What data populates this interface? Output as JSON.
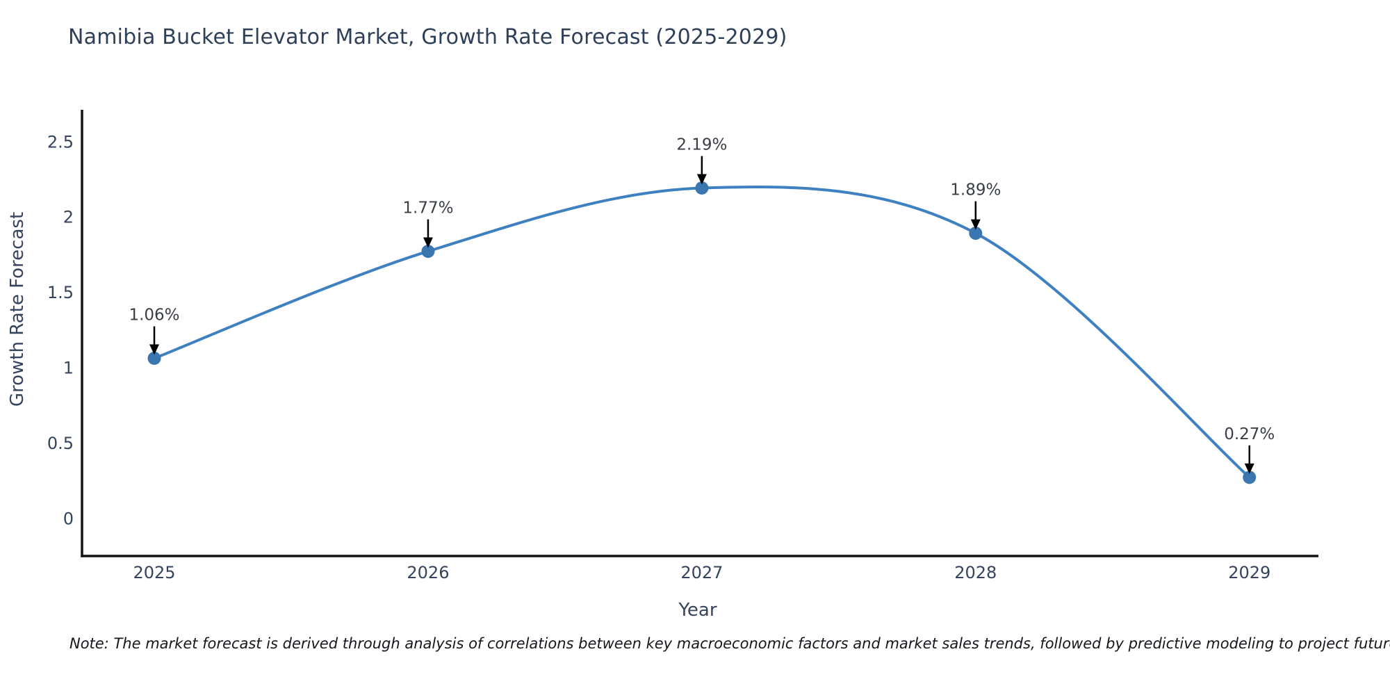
{
  "title": "Namibia Bucket Elevator Market, Growth Rate Forecast (2025-2029)",
  "note": "Note: The market forecast is derived through analysis of correlations between key macroeconomic factors and market sales trends, followed by predictive modeling to project future sales",
  "chart_data": {
    "type": "line",
    "title": "Namibia Bucket Elevator Market, Growth Rate Forecast (2025-2029)",
    "x": [
      2025,
      2026,
      2027,
      2028,
      2029
    ],
    "values": [
      1.06,
      1.77,
      2.19,
      1.89,
      0.27
    ],
    "point_labels": [
      "1.06%",
      "1.77%",
      "2.19%",
      "1.89%",
      "0.27%"
    ],
    "xlabel": "Year",
    "ylabel": "Growth Rate Forecast",
    "xticks": [
      "2025",
      "2026",
      "2027",
      "2028",
      "2029"
    ],
    "yticks": [
      "0",
      "0.5",
      "1",
      "1.5",
      "2",
      "2.5"
    ],
    "ytick_values": [
      0,
      0.5,
      1,
      1.5,
      2,
      2.5
    ],
    "xlim": [
      2024.736,
      2029.252
    ],
    "ylim": [
      -0.252,
      2.709
    ],
    "line_shape": "spline",
    "grid": false,
    "legend": "none",
    "colors": {
      "line": "#3f80c0",
      "marker": "#3a77b0",
      "annotation_arrow": "#000000",
      "annotation_text": "#3a3e45",
      "axis_line": "#141414",
      "text": "#2e3f58"
    }
  }
}
